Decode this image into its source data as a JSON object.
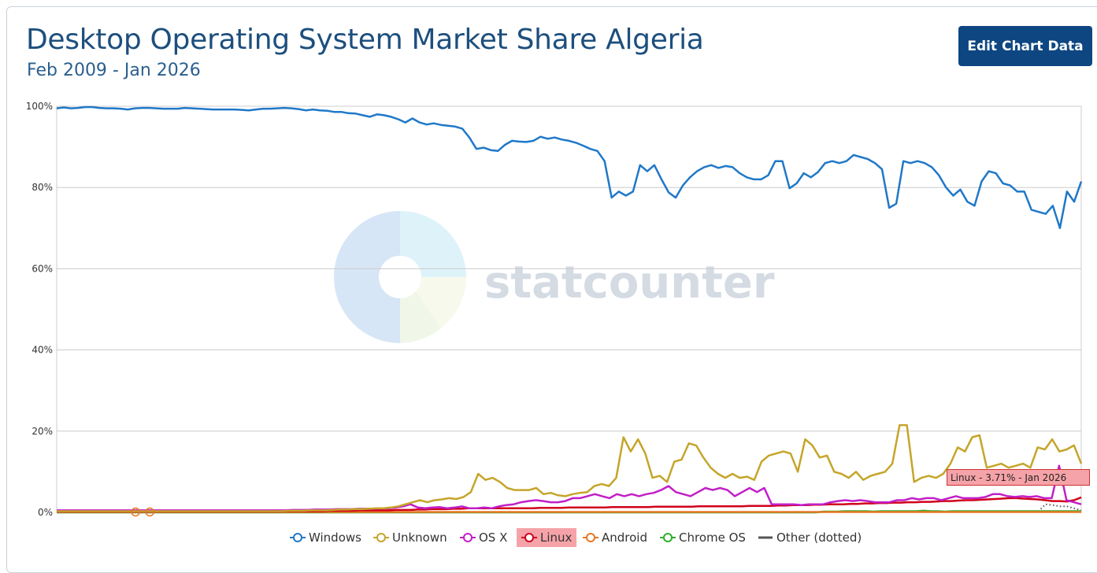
{
  "header": {
    "title": "Desktop Operating System Market Share Algeria",
    "subtitle": "Feb 2009 - Jan 2026",
    "edit_button_label": "Edit Chart Data"
  },
  "watermark": {
    "text": "statcounter"
  },
  "tooltip": {
    "text": "Linux - 3.71% - Jan 2026"
  },
  "colors": {
    "Windows": "#1f78c8",
    "Unknown": "#c5a52a",
    "OS X": "#c21fc8",
    "Linux": "#d0021b",
    "Android": "#e87722",
    "Chrome OS": "#2cb02c",
    "Other": "#555555",
    "gridline": "#cccccc",
    "title": "#1d4f7e",
    "button": "#0e4682"
  },
  "legend": [
    {
      "name": "Windows",
      "marker": "circle"
    },
    {
      "name": "Unknown",
      "marker": "circle"
    },
    {
      "name": "OS X",
      "marker": "circle"
    },
    {
      "name": "Linux",
      "marker": "circle",
      "active": true
    },
    {
      "name": "Android",
      "marker": "circle"
    },
    {
      "name": "Chrome OS",
      "marker": "circle"
    },
    {
      "name": "Other (dotted)",
      "marker": "line"
    }
  ],
  "chart_data": {
    "type": "line",
    "title": "Desktop Operating System Market Share Algeria",
    "subtitle": "Feb 2009 - Jan 2026",
    "x_range": [
      "Feb 2009",
      "Jan 2026"
    ],
    "ylim": [
      0,
      100
    ],
    "y_ticks": [
      "0%",
      "20%",
      "40%",
      "60%",
      "80%",
      "100%"
    ],
    "grid": true,
    "legend_position": "bottom",
    "series": [
      {
        "name": "Windows",
        "values": [
          99.5,
          99.7,
          99.5,
          99.6,
          99.8,
          99.8,
          99.6,
          99.5,
          99.5,
          99.4,
          99.2,
          99.5,
          99.6,
          99.6,
          99.5,
          99.4,
          99.4,
          99.4,
          99.6,
          99.5,
          99.4,
          99.3,
          99.2,
          99.2,
          99.2,
          99.2,
          99.1,
          99.0,
          99.2,
          99.4,
          99.4,
          99.5,
          99.6,
          99.5,
          99.3,
          99.0,
          99.2,
          99.0,
          98.9,
          98.6,
          98.6,
          98.3,
          98.2,
          97.8,
          97.4,
          98.0,
          97.8,
          97.4,
          96.8,
          96.0,
          97.0,
          96.0,
          95.5,
          95.8,
          95.4,
          95.2,
          95.0,
          94.5,
          92.3,
          89.5,
          89.8,
          89.2,
          89.0,
          90.5,
          91.5,
          91.3,
          91.2,
          91.5,
          92.5,
          92.0,
          92.3,
          91.8,
          91.5,
          91.0,
          90.3,
          89.5,
          89.0,
          86.5,
          77.5,
          79.0,
          78.0,
          79.0,
          85.5,
          84.0,
          85.5,
          82.0,
          78.8,
          77.5,
          80.5,
          82.5,
          84.0,
          85.0,
          85.5,
          84.8,
          85.3,
          85.0,
          83.5,
          82.5,
          82.0,
          82.0,
          83.0,
          86.5,
          86.5,
          79.8,
          81.0,
          83.5,
          82.5,
          83.8,
          86.0,
          86.5,
          86.0,
          86.5,
          88.0,
          87.5,
          87.0,
          86.0,
          84.5,
          75.0,
          76.0,
          86.5,
          86.0,
          86.5,
          86.0,
          85.0,
          83.0,
          80.0,
          78.0,
          79.5,
          76.5,
          75.5,
          81.5,
          84.0,
          83.5,
          81.0,
          80.5,
          79.0,
          79.0,
          74.5,
          74.0,
          73.5,
          75.5,
          70.0,
          79.0,
          76.5,
          81.5
        ],
        "last_value": 81.5
      },
      {
        "name": "Unknown",
        "values": [
          0.3,
          0.3,
          0.3,
          0.3,
          0.3,
          0.3,
          0.3,
          0.3,
          0.3,
          0.3,
          0.3,
          0.3,
          0.3,
          0.3,
          0.3,
          0.3,
          0.3,
          0.3,
          0.3,
          0.3,
          0.3,
          0.3,
          0.3,
          0.3,
          0.3,
          0.3,
          0.3,
          0.3,
          0.3,
          0.3,
          0.3,
          0.3,
          0.4,
          0.4,
          0.4,
          0.5,
          0.5,
          0.5,
          0.6,
          0.7,
          0.7,
          0.8,
          0.8,
          0.9,
          1.0,
          1.0,
          1.2,
          1.5,
          2.0,
          2.5,
          3.0,
          2.5,
          3.0,
          3.2,
          3.5,
          3.3,
          3.8,
          5.0,
          9.5,
          8.0,
          8.5,
          7.5,
          6.0,
          5.5,
          5.5,
          5.5,
          6.0,
          4.5,
          4.8,
          4.2,
          4.0,
          4.5,
          4.8,
          5.0,
          6.5,
          7.0,
          6.5,
          8.5,
          18.5,
          15.0,
          18.0,
          14.5,
          8.5,
          9.0,
          7.5,
          12.5,
          13.0,
          17.0,
          16.5,
          13.5,
          11.0,
          9.5,
          8.5,
          9.5,
          8.5,
          8.8,
          8.0,
          12.5,
          14.0,
          14.5,
          15.0,
          14.5,
          10.0,
          18.0,
          16.5,
          13.5,
          14.0,
          10.0,
          9.5,
          8.5,
          10.0,
          8.0,
          9.0,
          9.5,
          10.0,
          12.0,
          21.5,
          21.5,
          7.5,
          8.5,
          9.0,
          8.5,
          9.5,
          12.0,
          16.0,
          15.0,
          18.5,
          19.0,
          11.0,
          11.5,
          12.0,
          11.0,
          11.5,
          12.0,
          11.0,
          16.0,
          15.5,
          18.0,
          15.0,
          15.5,
          16.5,
          12.0
        ],
        "last_value": 12.0
      },
      {
        "name": "OS X",
        "values": [
          0.5,
          0.5,
          0.5,
          0.5,
          0.5,
          0.5,
          0.5,
          0.5,
          0.5,
          0.5,
          0.5,
          0.5,
          0.5,
          0.5,
          0.5,
          0.5,
          0.5,
          0.5,
          0.5,
          0.5,
          0.5,
          0.5,
          0.5,
          0.5,
          0.5,
          0.5,
          0.5,
          0.5,
          0.5,
          0.5,
          0.5,
          0.5,
          0.6,
          0.6,
          0.6,
          0.7,
          0.7,
          0.7,
          0.8,
          0.8,
          0.8,
          0.9,
          0.9,
          0.9,
          1.0,
          1.0,
          1.2,
          1.5,
          2.0,
          1.2,
          1.0,
          1.2,
          1.3,
          1.0,
          1.2,
          1.5,
          1.0,
          1.0,
          1.2,
          1.0,
          1.5,
          1.8,
          2.0,
          2.5,
          2.8,
          3.0,
          2.8,
          2.5,
          2.5,
          2.8,
          3.5,
          3.5,
          4.0,
          4.5,
          4.0,
          3.5,
          4.5,
          4.0,
          4.5,
          4.0,
          4.5,
          4.8,
          5.5,
          6.5,
          5.0,
          4.5,
          4.0,
          5.0,
          6.0,
          5.5,
          6.0,
          5.5,
          4.0,
          5.0,
          6.0,
          5.0,
          6.0,
          2.0,
          2.0,
          2.0,
          2.0,
          1.8,
          2.0,
          2.0,
          2.0,
          2.5,
          2.8,
          3.0,
          2.8,
          3.0,
          2.8,
          2.5,
          2.5,
          2.5,
          3.0,
          3.0,
          3.5,
          3.2,
          3.5,
          3.5,
          3.0,
          3.5,
          4.0,
          3.5,
          3.5,
          3.5,
          3.8,
          4.5,
          4.5,
          4.0,
          3.8,
          4.0,
          3.8,
          4.0,
          3.5,
          3.5,
          11.5,
          3.0,
          2.5,
          2.0
        ],
        "last_value": 2.0
      },
      {
        "name": "Linux",
        "values": [
          0.2,
          0.2,
          0.2,
          0.2,
          0.2,
          0.2,
          0.2,
          0.2,
          0.2,
          0.2,
          0.2,
          0.2,
          0.2,
          0.2,
          0.2,
          0.2,
          0.2,
          0.2,
          0.2,
          0.2,
          0.2,
          0.2,
          0.2,
          0.2,
          0.2,
          0.2,
          0.2,
          0.2,
          0.2,
          0.2,
          0.2,
          0.2,
          0.3,
          0.3,
          0.3,
          0.3,
          0.3,
          0.3,
          0.4,
          0.4,
          0.4,
          0.4,
          0.5,
          0.5,
          0.5,
          0.5,
          0.5,
          0.6,
          0.6,
          0.6,
          0.7,
          0.7,
          0.8,
          0.8,
          0.8,
          0.9,
          0.9,
          1.0,
          1.0,
          1.0,
          1.0,
          1.0,
          1.0,
          1.0,
          1.0,
          1.0,
          1.0,
          1.1,
          1.1,
          1.1,
          1.1,
          1.2,
          1.2,
          1.2,
          1.2,
          1.2,
          1.2,
          1.3,
          1.3,
          1.3,
          1.3,
          1.3,
          1.3,
          1.4,
          1.4,
          1.4,
          1.4,
          1.4,
          1.4,
          1.5,
          1.5,
          1.5,
          1.5,
          1.5,
          1.5,
          1.5,
          1.6,
          1.6,
          1.6,
          1.6,
          1.7,
          1.7,
          1.8,
          1.8,
          1.8,
          1.9,
          1.9,
          2.0,
          2.0,
          2.0,
          2.1,
          2.1,
          2.2,
          2.2,
          2.3,
          2.3,
          2.4,
          2.4,
          2.5,
          2.5,
          2.6,
          2.6,
          2.7,
          2.8,
          2.8,
          2.9,
          3.0,
          3.0,
          3.1,
          3.2,
          3.3,
          3.4,
          3.5,
          3.5,
          3.4,
          3.3,
          3.2,
          3.0,
          2.8,
          2.8,
          2.7,
          3.0,
          3.71
        ],
        "last_value": 3.71
      },
      {
        "name": "Android",
        "values": [
          0.1,
          0.1,
          0.1,
          0.1,
          0.1,
          0.1,
          0.1,
          0.1,
          0.1,
          0.1,
          0.1,
          0.1,
          0.1,
          0.1,
          0.1,
          0.1,
          0.1,
          0.1,
          0.1,
          0.1,
          0.1,
          0.1,
          0.1,
          0.1,
          0.1,
          0.1,
          0.1,
          0.1,
          0.1,
          0.1,
          0.1,
          0.1,
          0.1,
          0.1,
          0.1,
          0.1,
          0.1,
          0.1,
          0.1,
          0.1,
          0.1,
          0.1,
          0.1,
          0.1,
          0.1,
          0.1,
          0.1,
          0.1,
          0.1,
          0.1,
          0.1,
          0.1,
          0.1,
          0.1,
          0.1,
          0.1,
          0.1,
          0.1,
          0.1,
          0.1,
          0.1,
          0.1,
          0.1,
          0.1,
          0.1,
          0.1,
          0.1,
          0.1,
          0.1,
          0.1,
          0.1,
          0.1,
          0.1,
          0.1,
          0.1,
          0.1,
          0.1,
          0.1,
          0.1,
          0.1,
          0.1,
          0.1,
          0.1,
          0.1,
          0.1,
          0.1,
          0.1,
          0.1,
          0.1,
          0.1,
          0.1,
          0.1,
          0.1,
          0.1,
          0.1,
          0.1,
          0.1,
          0.1,
          0.1,
          0.1,
          0.1,
          0.1,
          0.1,
          0.1,
          0.1,
          0.1,
          0.1,
          0.1,
          0.1,
          0.1,
          0.1,
          0.1,
          0.1,
          0.1,
          0.1,
          0.1,
          0.1,
          0.1,
          0.1,
          0.1,
          0.1,
          0.1,
          0.1,
          0.1,
          0.1,
          0.1,
          0.1,
          0.1,
          0.1,
          0.1,
          0.1,
          0.1,
          0.1,
          0.1,
          0.1,
          0.1,
          0.1,
          0.1,
          0.1,
          0.1,
          0.1,
          0.1,
          0.1,
          0.1
        ],
        "last_value": 0.1
      },
      {
        "name": "Chrome OS",
        "values": [
          0,
          0,
          0,
          0,
          0,
          0,
          0,
          0,
          0,
          0,
          0,
          0,
          0,
          0,
          0,
          0,
          0,
          0,
          0,
          0,
          0,
          0,
          0,
          0,
          0,
          0,
          0,
          0,
          0,
          0,
          0,
          0,
          0,
          0,
          0,
          0,
          0,
          0,
          0,
          0,
          0,
          0,
          0,
          0,
          0,
          0,
          0,
          0,
          0,
          0,
          0,
          0,
          0,
          0,
          0,
          0,
          0,
          0,
          0,
          0,
          0,
          0,
          0,
          0,
          0,
          0,
          0,
          0,
          0,
          0,
          0,
          0,
          0,
          0,
          0,
          0,
          0,
          0,
          0,
          0,
          0,
          0,
          0,
          0,
          0,
          0,
          0,
          0,
          0,
          0,
          0,
          0,
          0,
          0,
          0,
          0,
          0,
          0,
          0,
          0,
          0,
          0,
          0,
          0,
          0,
          0,
          0,
          0.2,
          0.2,
          0.2,
          0.3,
          0.3,
          0.3,
          0.3,
          0.2,
          0.3,
          0.3,
          0.3,
          0.3,
          0.3,
          0.3,
          0.4,
          0.3,
          0.3,
          0.2,
          0.3,
          0.3,
          0.3,
          0.3,
          0.3,
          0.3,
          0.3,
          0.3,
          0.3,
          0.3,
          0.3,
          0.3,
          0.3,
          0.3,
          0.3,
          0.3,
          0.3,
          0.3,
          0.3
        ],
        "last_value": 0.3
      },
      {
        "name": "Other",
        "style": "dotted",
        "values": [
          0.1,
          0.1,
          0.1,
          0.1,
          0.1,
          0.1,
          0.1,
          0.1,
          0.1,
          0.1,
          0.1,
          0.1,
          0.1,
          0.1,
          0.1,
          0.1,
          0.1,
          0.1,
          0.1,
          0.1,
          0.1,
          0.1,
          0.1,
          0.1,
          0.1,
          0.1,
          0.1,
          0.1,
          0.1,
          0.1,
          0.1,
          0.1,
          0.1,
          0.1,
          0.1,
          0.1,
          0.1,
          0.1,
          0.1,
          0.1,
          0.1,
          0.1,
          0.1,
          0.1,
          0.1,
          0.1,
          0.1,
          0.1,
          0.1,
          0.1,
          0.1,
          0.1,
          0.1,
          0.1,
          0.1,
          0.1,
          0.1,
          0.1,
          0.1,
          0.1,
          0.1,
          0.1,
          0.1,
          0.1,
          0.1,
          0.1,
          0.1,
          0.1,
          0.1,
          0.1,
          0.1,
          0.1,
          0.1,
          0.1,
          0.1,
          0.1,
          0.1,
          0.1,
          0.1,
          0.1,
          0.1,
          0.1,
          0.1,
          0.1,
          0.1,
          0.1,
          0.1,
          0.1,
          0.1,
          0.1,
          0.1,
          0.1,
          0.1,
          0.1,
          0.1,
          0.1,
          0.1,
          0.1,
          0.1,
          0.1,
          0.1,
          0.1,
          0.1,
          0.1,
          0.1,
          0.1,
          0.1,
          0.1,
          0.1,
          0.1,
          0.1,
          0.1,
          0.1,
          0.1,
          0.1,
          0.1,
          0.1,
          0.1,
          0.1,
          0.1,
          0.1,
          0.1,
          0.1,
          0.1,
          0.1,
          0.1,
          0.1,
          0.1,
          0.1,
          0.1,
          0.1,
          0.1,
          0.1,
          0.1,
          0.1,
          0.1,
          0.1,
          0.2,
          2.0,
          1.8,
          1.5,
          1.5,
          1.0,
          0.5
        ],
        "last_value": 0.5
      }
    ]
  }
}
